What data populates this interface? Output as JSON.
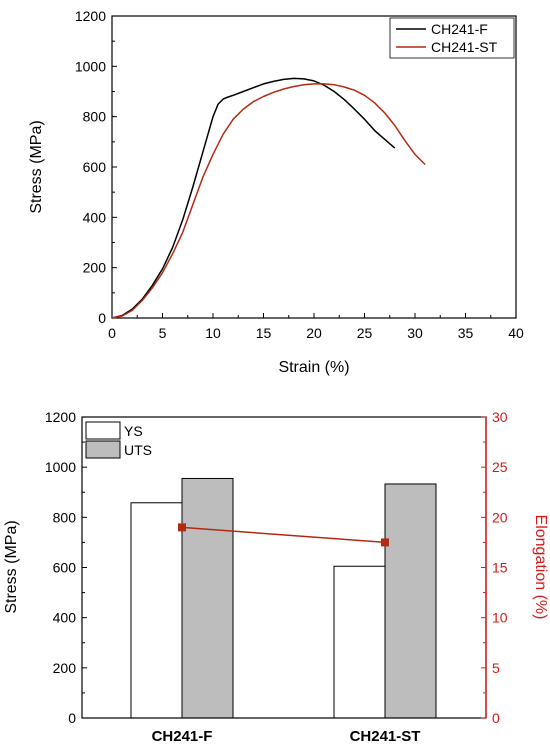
{
  "chart_data": [
    {
      "type": "line",
      "title": "",
      "xlabel": "Strain (%)",
      "ylabel": "Stress (MPa)",
      "xlim": [
        0,
        40
      ],
      "ylim": [
        0,
        1200
      ],
      "xticks": [
        0,
        5,
        10,
        15,
        20,
        25,
        30,
        35,
        40
      ],
      "yticks": [
        0,
        200,
        400,
        600,
        800,
        1000,
        1200
      ],
      "grid": false,
      "legend_position": "top-right",
      "series": [
        {
          "name": "CH241-F",
          "color": "#000000",
          "x": [
            0,
            1,
            2,
            3,
            4,
            5,
            6,
            7,
            8,
            9,
            10,
            10.5,
            11,
            11.5,
            12,
            13,
            14,
            15,
            16,
            17,
            18,
            19,
            20,
            21,
            22,
            23,
            24,
            25,
            26,
            27,
            28
          ],
          "y": [
            0,
            10,
            35,
            75,
            130,
            195,
            280,
            390,
            520,
            660,
            800,
            850,
            870,
            878,
            885,
            900,
            915,
            930,
            940,
            948,
            952,
            950,
            942,
            925,
            900,
            868,
            830,
            790,
            745,
            710,
            675
          ]
        },
        {
          "name": "CH241-ST",
          "color": "#b22a12",
          "x": [
            0,
            1,
            2,
            3,
            4,
            5,
            6,
            7,
            8,
            9,
            10,
            11,
            12,
            13,
            14,
            15,
            16,
            17,
            18,
            19,
            20,
            21,
            22,
            23,
            24,
            25,
            26,
            27,
            28,
            29,
            30,
            31
          ],
          "y": [
            0,
            8,
            30,
            70,
            120,
            180,
            255,
            340,
            450,
            560,
            650,
            730,
            790,
            830,
            860,
            880,
            897,
            910,
            920,
            927,
            930,
            930,
            927,
            918,
            905,
            885,
            855,
            815,
            765,
            705,
            650,
            610
          ]
        }
      ]
    },
    {
      "type": "bar",
      "title": "",
      "xlabel": "",
      "ylabel": "Stress (MPa)",
      "y2label": "Elongation (%)",
      "categories": [
        "CH241-F",
        "CH241-ST"
      ],
      "ylim": [
        0,
        1200
      ],
      "y2lim": [
        0,
        30
      ],
      "yticks": [
        0,
        200,
        400,
        600,
        800,
        1000,
        1200
      ],
      "y2ticks": [
        0,
        5,
        10,
        15,
        20,
        25,
        30
      ],
      "legend_position": "top-left",
      "series": [
        {
          "name": "YS",
          "color": "#ffffff",
          "values": [
            858,
            605
          ]
        },
        {
          "name": "UTS",
          "color": "#bdbdbd",
          "values": [
            955,
            933
          ]
        }
      ],
      "line_series": {
        "axis": "y2",
        "color": "#b22a12",
        "values": [
          19,
          17.5
        ]
      },
      "y2_color": "#d61a1a"
    }
  ]
}
